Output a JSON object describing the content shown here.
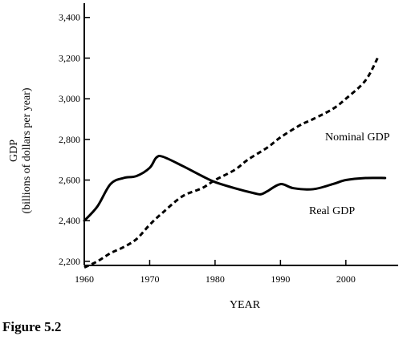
{
  "caption": "Figure 5.2",
  "chart_data": {
    "type": "line",
    "title": "",
    "xlabel": "YEAR",
    "ylabel_line1": "GDP",
    "ylabel_line2": "(billions of dollars per year)",
    "xlim": [
      1960,
      2008
    ],
    "ylim": [
      2180,
      3470
    ],
    "grid": false,
    "x_ticks": [
      1960,
      1970,
      1980,
      1990,
      2000
    ],
    "x_tick_labels": [
      "1960",
      "1970",
      "1980",
      "1990",
      "2000"
    ],
    "y_ticks": [
      2200,
      2400,
      2600,
      2800,
      3000,
      3200,
      3400
    ],
    "y_tick_labels": [
      "2,200",
      "2,400",
      "2,600",
      "2,800",
      "3,000",
      "3,200",
      "3,400"
    ],
    "series": [
      {
        "name": "Nominal GDP",
        "style": "dashed",
        "color": "#000000",
        "x": [
          1960,
          1962,
          1964,
          1966,
          1968,
          1970,
          1972,
          1975,
          1978,
          1980,
          1983,
          1985,
          1988,
          1990,
          1993,
          1995,
          1998,
          2000,
          2003,
          2005
        ],
        "values": [
          2170,
          2200,
          2240,
          2270,
          2310,
          2380,
          2440,
          2520,
          2560,
          2600,
          2650,
          2700,
          2760,
          2810,
          2870,
          2900,
          2950,
          3000,
          3090,
          3210
        ]
      },
      {
        "name": "Real GDP",
        "style": "solid",
        "color": "#000000",
        "x": [
          1960,
          1962,
          1964,
          1966,
          1968,
          1970,
          1971,
          1972,
          1975,
          1978,
          1980,
          1983,
          1986,
          1987,
          1988,
          1990,
          1992,
          1995,
          1998,
          2000,
          2003,
          2006
        ],
        "values": [
          2400,
          2470,
          2580,
          2610,
          2620,
          2660,
          2710,
          2715,
          2670,
          2620,
          2590,
          2560,
          2535,
          2530,
          2545,
          2580,
          2560,
          2555,
          2580,
          2600,
          2610,
          2610
        ]
      }
    ]
  }
}
